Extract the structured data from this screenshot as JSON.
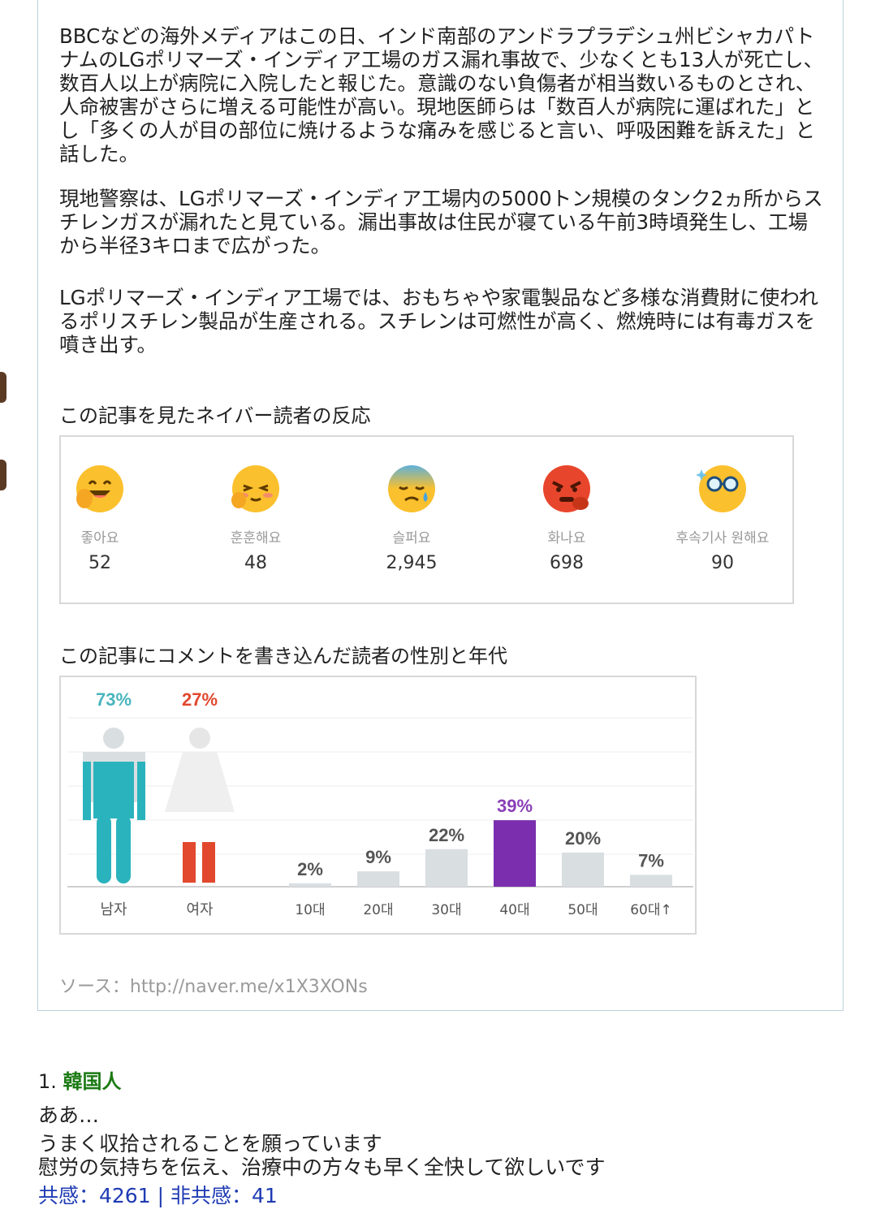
{
  "article": {
    "paragraphs": [
      "BBCなどの海外メディアはこの日、インド南部のアンドラプラデシュ州ビシャカパトナムのLGポリマーズ・インディア工場のガス漏れ事故で、少なくとも13人が死亡し、数百人以上が病院に入院したと報じた。意識のない負傷者が相当数いるものとされ、人命被害がさらに増える可能性が高い。現地医師らは「数百人が病院に運ばれた」とし「多くの人が目の部位に焼けるような痛みを感じると言い、呼吸困難を訴えた」と話した。",
      "現地警察は、LGポリマーズ・インディア工場内の5000トン規模のタンク2ヵ所からスチレンガスが漏れたと見ている。漏出事故は住民が寝ている午前3時頃発生し、工場から半径3キロまで広がった。",
      "LGポリマーズ・インディア工場では、おもちゃや家電製品など多様な消費財に使われるポリスチレン製品が生産される。スチレンは可燃性が高く、燃焼時には有毒ガスを噴き出す。"
    ],
    "reactions_title": "この記事を見たネイバー読者の反応",
    "reactions": [
      {
        "icon": "laughing-face-icon",
        "label": "좋아요",
        "count": "52"
      },
      {
        "icon": "embarrassed-face-icon",
        "label": "훈훈해요",
        "count": "48"
      },
      {
        "icon": "sad-face-icon",
        "label": "슬퍼요",
        "count": "2,945"
      },
      {
        "icon": "angry-face-icon",
        "label": "화나요",
        "count": "698"
      },
      {
        "icon": "glasses-face-icon",
        "label": "후속기사 원해요",
        "count": "90"
      }
    ],
    "demographics_title": "この記事にコメントを書き込んだ読者の性別と年代",
    "source": "ソース：http://naver.me/x1X3XONs"
  },
  "colors": {
    "male": "#2bb3bd",
    "female_skirt": "#f2f2f2",
    "female_legs": "#e2482e",
    "bar_default": "#d9dee1",
    "bar_highlight": "#7b2fae",
    "male_text": "#49b4bd",
    "female_text": "#e2482e",
    "highlight_text": "#8a3fb8",
    "comment_author": "#1b7a14",
    "comment_votes": "#1f3bb3"
  },
  "chart_data": {
    "type": "bar",
    "gender": [
      {
        "name": "남자",
        "value": 73,
        "label": "73%"
      },
      {
        "name": "여자",
        "value": 27,
        "label": "27%"
      }
    ],
    "categories": [
      "10대",
      "20대",
      "30대",
      "40대",
      "50대",
      "60대↑"
    ],
    "values": [
      2,
      9,
      22,
      39,
      20,
      7
    ],
    "value_labels": [
      "2%",
      "9%",
      "22%",
      "39%",
      "20%",
      "7%"
    ],
    "highlight": "40대",
    "ylim": [
      0,
      40
    ],
    "grid": true
  },
  "comment": {
    "number": "1.",
    "author": "韓国人",
    "lines": [
      "ああ…",
      "うまく収拾されることを願っています",
      "慰労の気持ちを伝え、治療中の方々も早く全快して欲しいです"
    ],
    "votes": "共感：4261 | 非共感：41"
  }
}
